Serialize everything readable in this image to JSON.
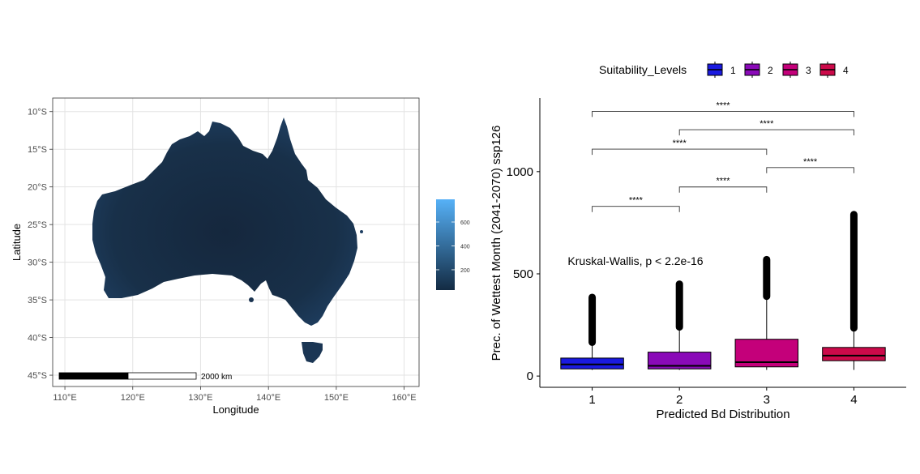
{
  "chart_data": [
    {
      "type": "heatmap",
      "panel": "map",
      "xlabel": "Longitude",
      "ylabel": "Latitude",
      "x_ticks": [
        "110°E",
        "120°E",
        "130°E",
        "140°E",
        "150°E",
        "160°E"
      ],
      "x_tick_values": [
        110,
        120,
        130,
        140,
        150,
        160
      ],
      "y_ticks": [
        "10°S",
        "15°S",
        "20°S",
        "25°S",
        "30°S",
        "35°S",
        "40°S",
        "45°S"
      ],
      "y_tick_values": [
        -10,
        -15,
        -20,
        -25,
        -30,
        -35,
        -40,
        -45
      ],
      "xlim": [
        108.2,
        162.2
      ],
      "ylim": [
        -46.5,
        -8.2
      ],
      "grid": true,
      "colorbar": {
        "ticks": [
          "200",
          "400",
          "600"
        ],
        "tick_values": [
          200,
          400,
          600
        ],
        "range": [
          30,
          790
        ],
        "low_color": "#132B43",
        "high_color": "#56B1F7"
      },
      "scale_bar": {
        "label": "2000 km"
      }
    },
    {
      "type": "box",
      "panel": "boxplot",
      "categories": [
        "1",
        "2",
        "3",
        "4"
      ],
      "xlabel": "Predicted Bd Distribution",
      "ylabel": "Prec. of Wettest Month (2041-2070) ssp126",
      "y_ticks": [
        "0",
        "500",
        "1000"
      ],
      "y_tick_values": [
        0,
        500,
        1000
      ],
      "ylim": [
        -55,
        1360
      ],
      "legend": {
        "title": "Suitability_Levels",
        "position": "top",
        "entries": [
          "1",
          "2",
          "3",
          "4"
        ]
      },
      "colors": [
        "#1a1ae0",
        "#8a0ab8",
        "#c4007a",
        "#cc0a4a"
      ],
      "boxes": [
        {
          "category": "1",
          "q1": 35,
          "median": 57,
          "q3": 88,
          "whisker_low": 30,
          "whisker_high": 165,
          "outlier_max": 385
        },
        {
          "category": "2",
          "q1": 35,
          "median": 50,
          "q3": 117,
          "whisker_low": 30,
          "whisker_high": 240,
          "outlier_max": 450
        },
        {
          "category": "3",
          "q1": 45,
          "median": 68,
          "q3": 180,
          "whisker_low": 30,
          "whisker_high": 390,
          "outlier_max": 570
        },
        {
          "category": "4",
          "q1": 75,
          "median": 100,
          "q3": 140,
          "whisker_low": 30,
          "whisker_high": 235,
          "outlier_max": 790
        }
      ],
      "annotation": "Kruskal-Wallis, p < 2.2e-16",
      "comparisons": [
        {
          "pair": [
            "1",
            "2"
          ],
          "label": "****",
          "y": 830
        },
        {
          "pair": [
            "2",
            "3"
          ],
          "label": "****",
          "y": 925
        },
        {
          "pair": [
            "3",
            "4"
          ],
          "label": "****",
          "y": 1020
        },
        {
          "pair": [
            "1",
            "3"
          ],
          "label": "****",
          "y": 1110
        },
        {
          "pair": [
            "2",
            "4"
          ],
          "label": "****",
          "y": 1205
        },
        {
          "pair": [
            "1",
            "4"
          ],
          "label": "****",
          "y": 1295
        }
      ]
    }
  ]
}
